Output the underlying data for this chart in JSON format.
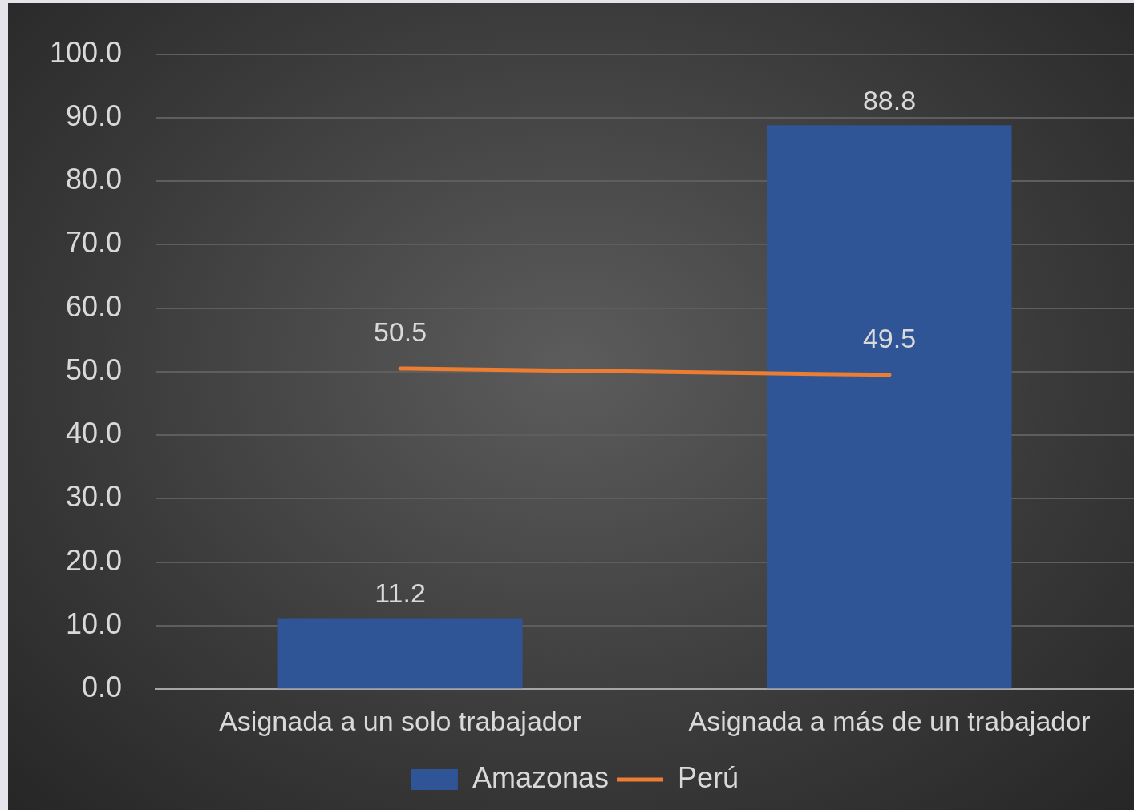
{
  "chart_data": {
    "type": "bar",
    "categories": [
      "Asignada a un solo trabajador",
      "Asignada a más de un trabajador"
    ],
    "series": [
      {
        "name": "Amazonas",
        "color": "#2f5597",
        "values": [
          11.2,
          88.8
        ]
      },
      {
        "name": "Perú",
        "type": "line",
        "color": "#ed7d31",
        "values": [
          50.5,
          49.5
        ]
      }
    ],
    "ylim": [
      0,
      100
    ],
    "yticks": [
      {
        "value": 0,
        "label": "0.0"
      },
      {
        "value": 10,
        "label": "10.0"
      },
      {
        "value": 20,
        "label": "20.0"
      },
      {
        "value": 30,
        "label": "30.0"
      },
      {
        "value": 40,
        "label": "40.0"
      },
      {
        "value": 50,
        "label": "50.0"
      },
      {
        "value": 60,
        "label": "60.0"
      },
      {
        "value": 70,
        "label": "70.0"
      },
      {
        "value": 80,
        "label": "80.0"
      },
      {
        "value": 90,
        "label": "90.0"
      },
      {
        "value": 100,
        "label": "100.0"
      }
    ],
    "grid": "y",
    "legend": "bottom",
    "marker": "none",
    "line_style": "solid",
    "data_labels": true
  }
}
